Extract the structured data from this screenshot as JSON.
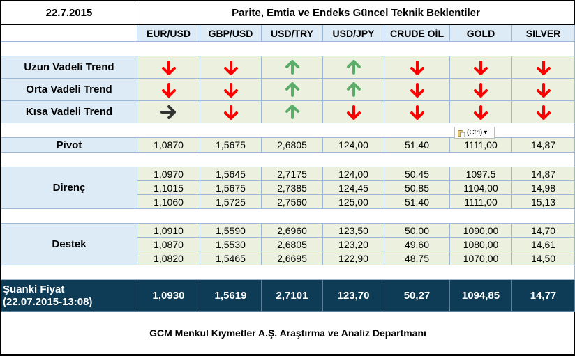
{
  "header": {
    "date": "22.7.2015",
    "title": "Parite, Emtia ve Endeks Güncel Teknik Beklentiler"
  },
  "columns": [
    "EUR/USD",
    "GBP/USD",
    "USD/TRY",
    "USD/JPY",
    "CRUDE OİL",
    "GOLD",
    "SILVER"
  ],
  "trends": [
    {
      "label": "Uzun Vadeli Trend",
      "directions": [
        "down",
        "down",
        "up",
        "up",
        "down",
        "down",
        "down"
      ]
    },
    {
      "label": "Orta Vadeli Trend",
      "directions": [
        "down",
        "down",
        "up",
        "up",
        "down",
        "down",
        "down"
      ]
    },
    {
      "label": "Kısa Vadeli Trend",
      "directions": [
        "right",
        "down",
        "up",
        "down",
        "down",
        "down",
        "down"
      ]
    }
  ],
  "arrow_colors": {
    "down": "#ff0000",
    "up": "#5cad6a",
    "right": "#333333"
  },
  "pivot": {
    "label": "Pivot",
    "values": [
      "1,0870",
      "1,5675",
      "2,6805",
      "124,00",
      "51,40",
      "1111,00",
      "14,87"
    ]
  },
  "direnc": {
    "label": "Direnç",
    "rows": [
      [
        "1,0970",
        "1,5645",
        "2,7175",
        "124,00",
        "50,45",
        "1097.5",
        "14,87"
      ],
      [
        "1,1015",
        "1,5675",
        "2,7385",
        "124,45",
        "50,85",
        "1104,00",
        "14,98"
      ],
      [
        "1,1060",
        "1,5725",
        "2,7560",
        "125,00",
        "51,40",
        "1111,00",
        "15,13"
      ]
    ]
  },
  "destek": {
    "label": "Destek",
    "rows": [
      [
        "1,0910",
        "1,5590",
        "2,6960",
        "123,50",
        "50,00",
        "1090,00",
        "14,70"
      ],
      [
        "1,0870",
        "1,5530",
        "2,6805",
        "123,20",
        "49,60",
        "1080,00",
        "14,61"
      ],
      [
        "1,0820",
        "1,5465",
        "2,6695",
        "122,90",
        "48,75",
        "1070,00",
        "14,50"
      ]
    ]
  },
  "current": {
    "label_line1": "Şuanki Fiyat",
    "label_line2": "(22.07.2015-13:08)",
    "values": [
      "1,0930",
      "1,5619",
      "2,7101",
      "123,70",
      "50,27",
      "1094,85",
      "14,77"
    ]
  },
  "footer": "GCM Menkul Kıymetler A.Ş. Araştırma ve Analiz Departmanı",
  "paste_options": {
    "label": "(Ctrl)",
    "chevron": "▾",
    "icon": "clipboard-icon"
  }
}
